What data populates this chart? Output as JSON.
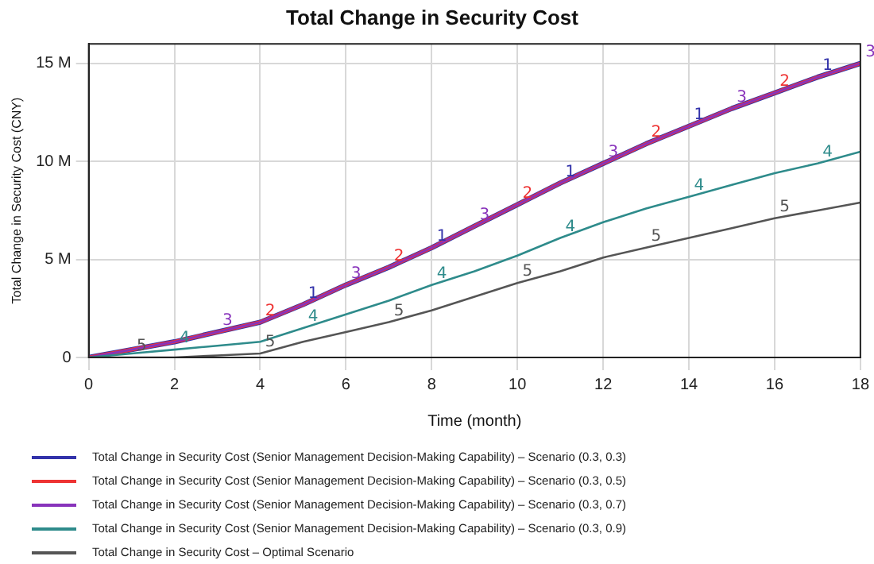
{
  "chart_data": {
    "type": "line",
    "title": "Total Change in Security Cost",
    "xlabel": "Time (month)",
    "ylabel": "Total Change in Security Cost (CNY)",
    "x": [
      0,
      1,
      2,
      3,
      4,
      5,
      6,
      7,
      8,
      9,
      10,
      11,
      12,
      13,
      14,
      15,
      16,
      17,
      18
    ],
    "xlim": [
      0,
      18
    ],
    "xticks": [
      0,
      2,
      4,
      6,
      8,
      10,
      12,
      14,
      16,
      18
    ],
    "ylim": [
      0,
      16000000
    ],
    "yticks": [
      0,
      {
        "value": 5000000,
        "label": "5 M"
      },
      {
        "value": 10000000,
        "label": "10 M"
      },
      {
        "value": 15000000,
        "label": "15 M"
      }
    ],
    "grid": true,
    "legend": "bottom",
    "line_style": "solid",
    "series": [
      {
        "name": "Total Change in Security Cost (Senior Management Decision-Making Capability) – Scenario (0.3, 0.3)",
        "color": "#3333aa",
        "values": [
          0,
          400000,
          800000,
          1300000,
          1800000,
          2700000,
          3700000,
          4600000,
          5600000,
          6700000,
          7800000,
          8900000,
          9900000,
          10900000,
          11800000,
          12700000,
          13500000,
          14300000,
          15000000
        ]
      },
      {
        "name": "Total Change in Security Cost (Senior Management Decision-Making Capability) – Scenario (0.3, 0.5)",
        "color": "#ee3333",
        "values": [
          0,
          400000,
          800000,
          1300000,
          1800000,
          2700000,
          3700000,
          4600000,
          5600000,
          6700000,
          7800000,
          8900000,
          9900000,
          10900000,
          11800000,
          12700000,
          13500000,
          14300000,
          15000000
        ]
      },
      {
        "name": "Total Change in Security Cost (Senior Management Decision-Making Capability) – Scenario (0.3, 0.7)",
        "color": "#8833bb",
        "values": [
          0,
          400000,
          800000,
          1300000,
          1800000,
          2700000,
          3700000,
          4600000,
          5600000,
          6700000,
          7800000,
          8900000,
          9900000,
          10900000,
          11800000,
          12700000,
          13500000,
          14300000,
          15000000
        ]
      },
      {
        "name": "Total Change in Security Cost (Senior Management Decision-Making Capability) – Scenario (0.3, 0.9)",
        "color": "#2e8b8b",
        "values": [
          0,
          200000,
          400000,
          600000,
          800000,
          1500000,
          2200000,
          2900000,
          3700000,
          4400000,
          5200000,
          6100000,
          6900000,
          7600000,
          8200000,
          8800000,
          9400000,
          9900000,
          10500000
        ]
      },
      {
        "name": "Total Change in Security Cost – Optimal Scenario",
        "color": "#555555",
        "values": [
          0,
          0,
          0,
          100000,
          200000,
          800000,
          1300000,
          1800000,
          2400000,
          3100000,
          3800000,
          4400000,
          5100000,
          5600000,
          6100000,
          6600000,
          7100000,
          7500000,
          7900000
        ]
      }
    ],
    "annotations": [
      {
        "text": "1",
        "x": 5,
        "y": 2700000
      },
      {
        "text": "1",
        "x": 8,
        "y": 5600000
      },
      {
        "text": "1",
        "x": 11,
        "y": 8900000
      },
      {
        "text": "1",
        "x": 14,
        "y": 11800000
      },
      {
        "text": "1",
        "x": 17,
        "y": 14300000
      },
      {
        "text": "2",
        "x": 4,
        "y": 1800000
      },
      {
        "text": "2",
        "x": 7,
        "y": 4600000
      },
      {
        "text": "2",
        "x": 10,
        "y": 7800000
      },
      {
        "text": "2",
        "x": 13,
        "y": 10900000
      },
      {
        "text": "2",
        "x": 16,
        "y": 13500000
      },
      {
        "text": "3",
        "x": 3,
        "y": 1300000
      },
      {
        "text": "3",
        "x": 6,
        "y": 3700000
      },
      {
        "text": "3",
        "x": 9,
        "y": 6700000
      },
      {
        "text": "3",
        "x": 12,
        "y": 9900000
      },
      {
        "text": "3",
        "x": 15,
        "y": 12700000
      },
      {
        "text": "3",
        "x": 18,
        "y": 15000000
      },
      {
        "text": "4",
        "x": 2,
        "y": 400000
      },
      {
        "text": "4",
        "x": 5,
        "y": 1500000
      },
      {
        "text": "4",
        "x": 8,
        "y": 3700000
      },
      {
        "text": "4",
        "x": 11,
        "y": 6100000
      },
      {
        "text": "4",
        "x": 14,
        "y": 8200000
      },
      {
        "text": "4",
        "x": 17,
        "y": 9900000
      },
      {
        "text": "5",
        "x": 1,
        "y": 0
      },
      {
        "text": "5",
        "x": 4,
        "y": 200000
      },
      {
        "text": "5",
        "x": 7,
        "y": 1800000
      },
      {
        "text": "5",
        "x": 10,
        "y": 3800000
      },
      {
        "text": "5",
        "x": 13,
        "y": 5600000
      },
      {
        "text": "5",
        "x": 16,
        "y": 7100000
      }
    ]
  }
}
